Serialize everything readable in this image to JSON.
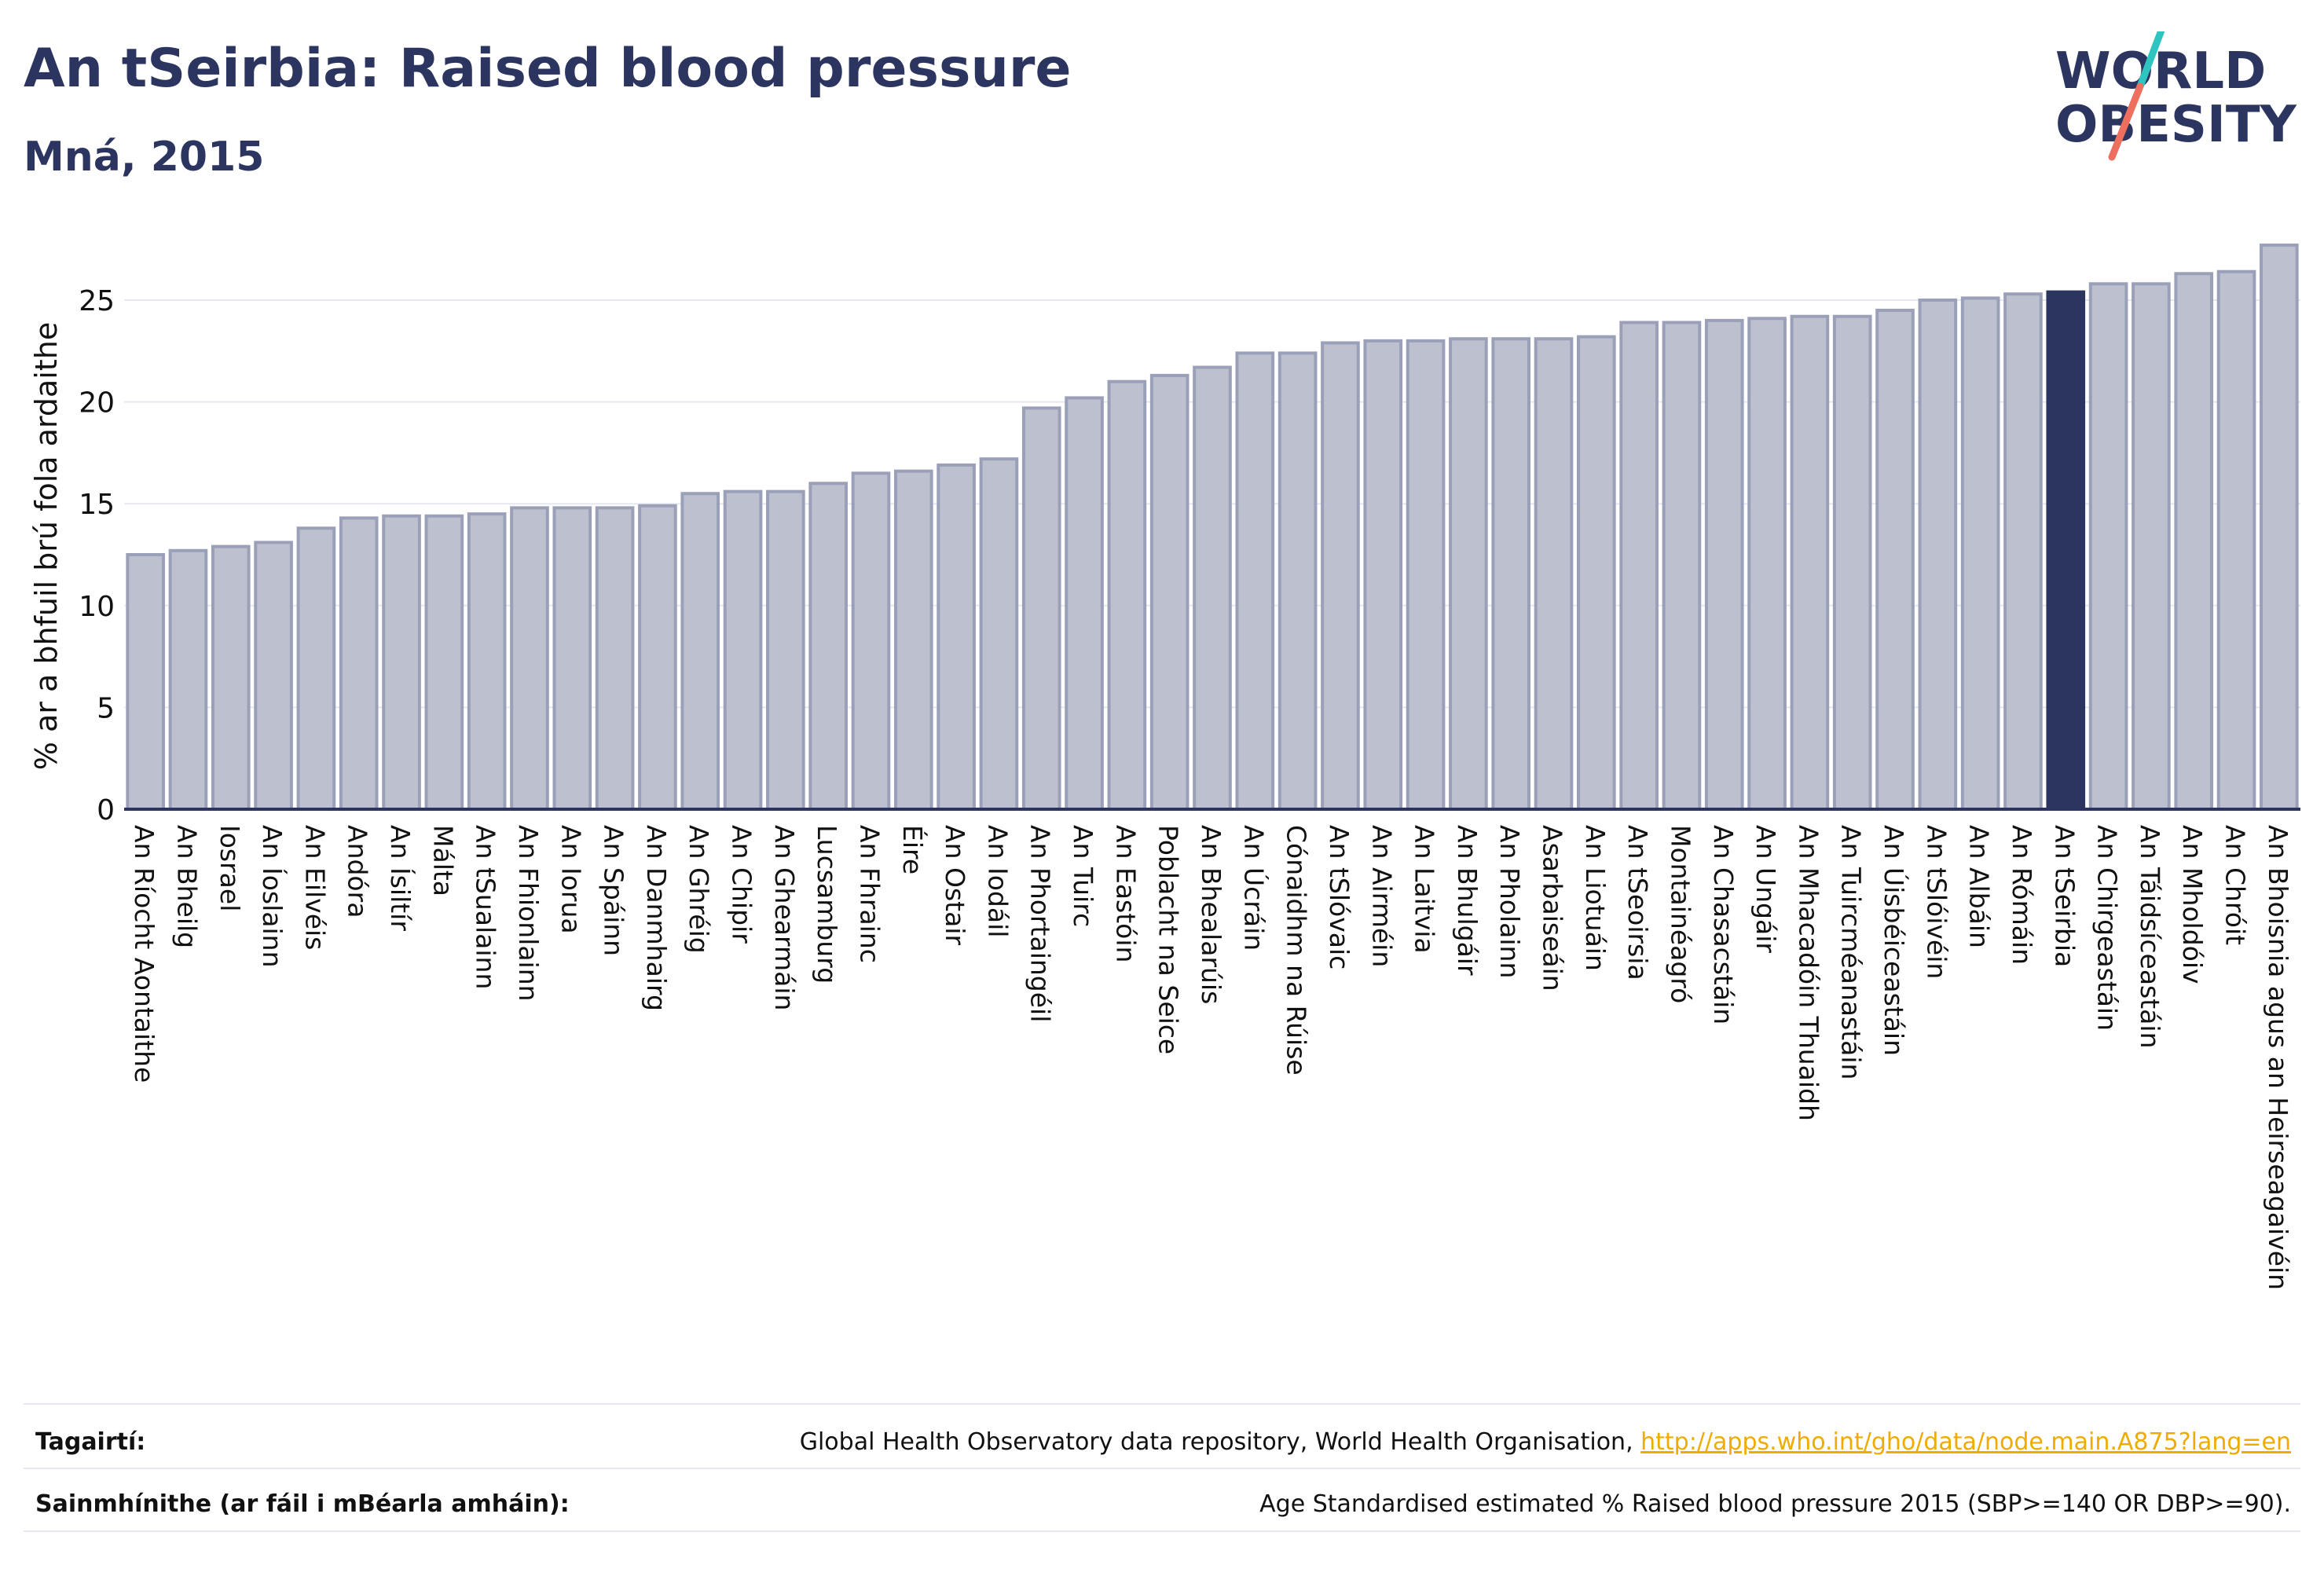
{
  "header": {
    "title": "An tSeirbia: Raised blood pressure",
    "subtitle": "Mná, 2015"
  },
  "logo": {
    "line1": "WORLD",
    "line2": "OBESITY",
    "colors": {
      "text": "#2b3560",
      "slash_teal": "#2ec4c0",
      "slash_coral": "#ef6f5e"
    }
  },
  "chart_data": {
    "type": "bar",
    "title": "",
    "xlabel": "",
    "ylabel": "% ar a bhfuil brú fola ardaithe",
    "ylim": [
      0,
      28
    ],
    "yticks": [
      0,
      5,
      10,
      15,
      20,
      25
    ],
    "grid": true,
    "highlight": "An tSeirbia",
    "colors": {
      "bar": "#bdc1cf",
      "bar_edge": "#9aa0b8",
      "highlight": "#2b3560",
      "grid": "#e6e8f1",
      "axis": "#2b3560"
    },
    "categories": [
      "An Ríocht Aontaithe",
      "An Bheilg",
      "Iosrael",
      "An Íoslainn",
      "An Eilvéis",
      "Andóra",
      "An Ísiltír",
      "Málta",
      "An tSualainn",
      "An Fhionlainn",
      "An Iorua",
      "An Spáinn",
      "An Danmhairg",
      "An Ghréig",
      "An Chipir",
      "An Ghearmáin",
      "Lucsamburg",
      "An Fhrainc",
      "Éire",
      "An Ostair",
      "An Iodáil",
      "An Phortaingéil",
      "An Tuirc",
      "An Eastóin",
      "Poblacht na Seice",
      "An Bhealarúis",
      "An Úcráin",
      "Cónaidhm na Rúise",
      "An tSlóvaic",
      "An Airméin",
      "An Laitvia",
      "An Bhulgáir",
      "An Pholainn",
      "Asarbaiseáin",
      "An Liotuáin",
      "An tSeoirsia",
      "Montainéagró",
      "An Chasacstáin",
      "An Ungáir",
      "An Mhacadóin Thuaidh",
      "An Tuircméanastáin",
      "An Úisbéiceastáin",
      "An tSlóivéin",
      "An Albáin",
      "An Rómáin",
      "An tSeirbia",
      "An Chirgeastáin",
      "An Táidsíceastáin",
      "An Mholdóiv",
      "An Chróit",
      "An Bhoisnia agus an Heirseagaivéin"
    ],
    "values": [
      12.5,
      12.7,
      12.9,
      13.1,
      13.8,
      14.3,
      14.4,
      14.4,
      14.5,
      14.8,
      14.8,
      14.8,
      14.9,
      15.5,
      15.6,
      15.6,
      16.0,
      16.5,
      16.6,
      16.9,
      17.2,
      19.7,
      20.2,
      21.0,
      21.3,
      21.7,
      22.4,
      22.4,
      22.9,
      23.0,
      23.0,
      23.1,
      23.1,
      23.1,
      23.2,
      23.9,
      23.9,
      24.0,
      24.1,
      24.2,
      24.2,
      24.5,
      25.0,
      25.1,
      25.3,
      25.4,
      25.8,
      25.8,
      26.3,
      26.4,
      27.7
    ]
  },
  "footer": {
    "references_label": "Tagairtí:",
    "references_text": "Global Health Observatory data repository, World Health Organisation, ",
    "references_link": "http://apps.who.int/gho/data/node.main.A875?lang=en",
    "definitions_label": "Sainmhínithe (ar fáil i mBéarla amháin):",
    "definitions_text": "Age Standardised estimated % Raised blood pressure 2015 (SBP>=140 OR DBP>=90)."
  }
}
